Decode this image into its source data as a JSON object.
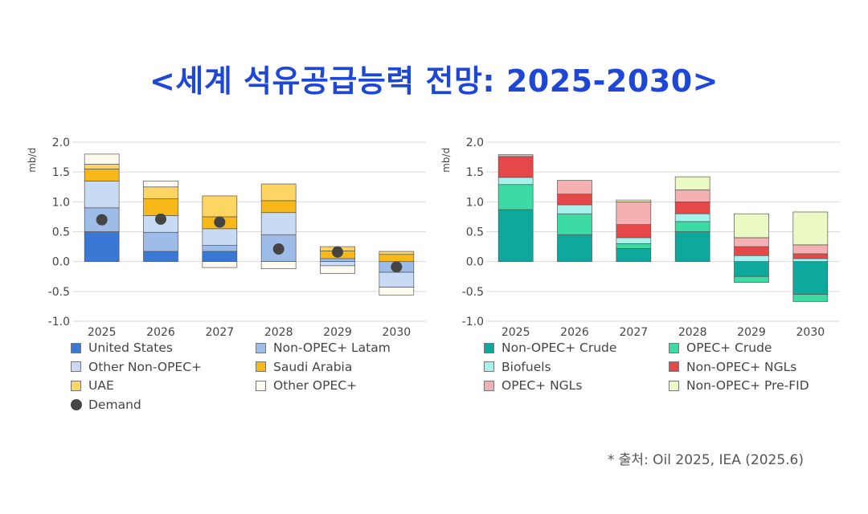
{
  "title": "<세계 석유공급능력 전망: 2025-2030>",
  "source": "* 출처: Oil 2025, IEA (2025.6)",
  "chart_data": [
    {
      "type": "bar",
      "stacked": true,
      "ylabel": "mb/d",
      "ylim": [
        -1.0,
        2.0
      ],
      "yticks": [
        "2.0",
        "1.5",
        "1.0",
        "0.5",
        "0.0",
        "-0.5",
        "-1.0"
      ],
      "categories": [
        "2025",
        "2026",
        "2027",
        "2028",
        "2029",
        "2030"
      ],
      "series": [
        {
          "name": "United States",
          "color": "#3a78d6",
          "values": [
            0.5,
            0.17,
            0.17,
            0.0,
            0.0,
            0.0
          ]
        },
        {
          "name": "Non-OPEC+ Latam",
          "color": "#9dbce8",
          "values": [
            0.4,
            0.32,
            0.1,
            0.45,
            0.05,
            -0.18
          ]
        },
        {
          "name": "Other Non-OPEC+",
          "color": "#c9daf4",
          "values": [
            0.45,
            0.28,
            0.28,
            0.37,
            -0.07,
            -0.25
          ]
        },
        {
          "name": "Saudi Arabia",
          "color": "#f8b818",
          "values": [
            0.2,
            0.28,
            0.2,
            0.2,
            0.13,
            0.12
          ]
        },
        {
          "name": "UAE",
          "color": "#fdd562",
          "values": [
            0.08,
            0.2,
            0.35,
            0.28,
            0.07,
            0.05
          ]
        },
        {
          "name": "Other OPEC+",
          "color": "#fdfaf0",
          "values": [
            0.17,
            0.1,
            -0.1,
            -0.12,
            -0.13,
            -0.13
          ]
        }
      ],
      "demand": {
        "name": "Demand",
        "color": "#444444",
        "values": [
          0.7,
          0.71,
          0.66,
          0.21,
          0.16,
          -0.09
        ]
      },
      "legend": [
        "United States",
        "Non-OPEC+ Latam",
        "Other Non-OPEC+",
        "Saudi Arabia",
        "UAE",
        "Other OPEC+",
        "Demand"
      ]
    },
    {
      "type": "bar",
      "stacked": true,
      "ylabel": "mb/d",
      "ylim": [
        -1.0,
        2.0
      ],
      "yticks": [
        "2.0",
        "1.5",
        "1.0",
        "0.5",
        "0.0",
        "-0.5",
        "-1.0"
      ],
      "categories": [
        "2025",
        "2026",
        "2027",
        "2028",
        "2029",
        "2030"
      ],
      "series": [
        {
          "name": "Non-OPEC+ Crude",
          "color": "#0fa89c",
          "values": [
            0.87,
            0.45,
            0.22,
            0.5,
            -0.25,
            -0.55
          ]
        },
        {
          "name": "OPEC+ Crude",
          "color": "#3ddba4",
          "values": [
            0.42,
            0.35,
            0.08,
            0.17,
            -0.1,
            -0.12
          ]
        },
        {
          "name": "Biofuels",
          "color": "#a8f2ee",
          "values": [
            0.12,
            0.15,
            0.1,
            0.13,
            0.1,
            0.05
          ]
        },
        {
          "name": "Non-OPEC+ NGLs",
          "color": "#e54848",
          "values": [
            0.35,
            0.18,
            0.22,
            0.2,
            0.15,
            0.08
          ]
        },
        {
          "name": "OPEC+ NGLs",
          "color": "#f5b1b1",
          "values": [
            0.03,
            0.23,
            0.38,
            0.2,
            0.15,
            0.15
          ]
        },
        {
          "name": "Non-OPEC+ Pre-FID",
          "color": "#ebf9c4",
          "values": [
            0.0,
            0.0,
            0.03,
            0.22,
            0.4,
            0.55
          ]
        }
      ],
      "legend": [
        "Non-OPEC+ Crude",
        "OPEC+ Crude",
        "Biofuels",
        "Non-OPEC+ NGLs",
        "OPEC+ NGLs",
        "Non-OPEC+ Pre-FID"
      ]
    }
  ]
}
